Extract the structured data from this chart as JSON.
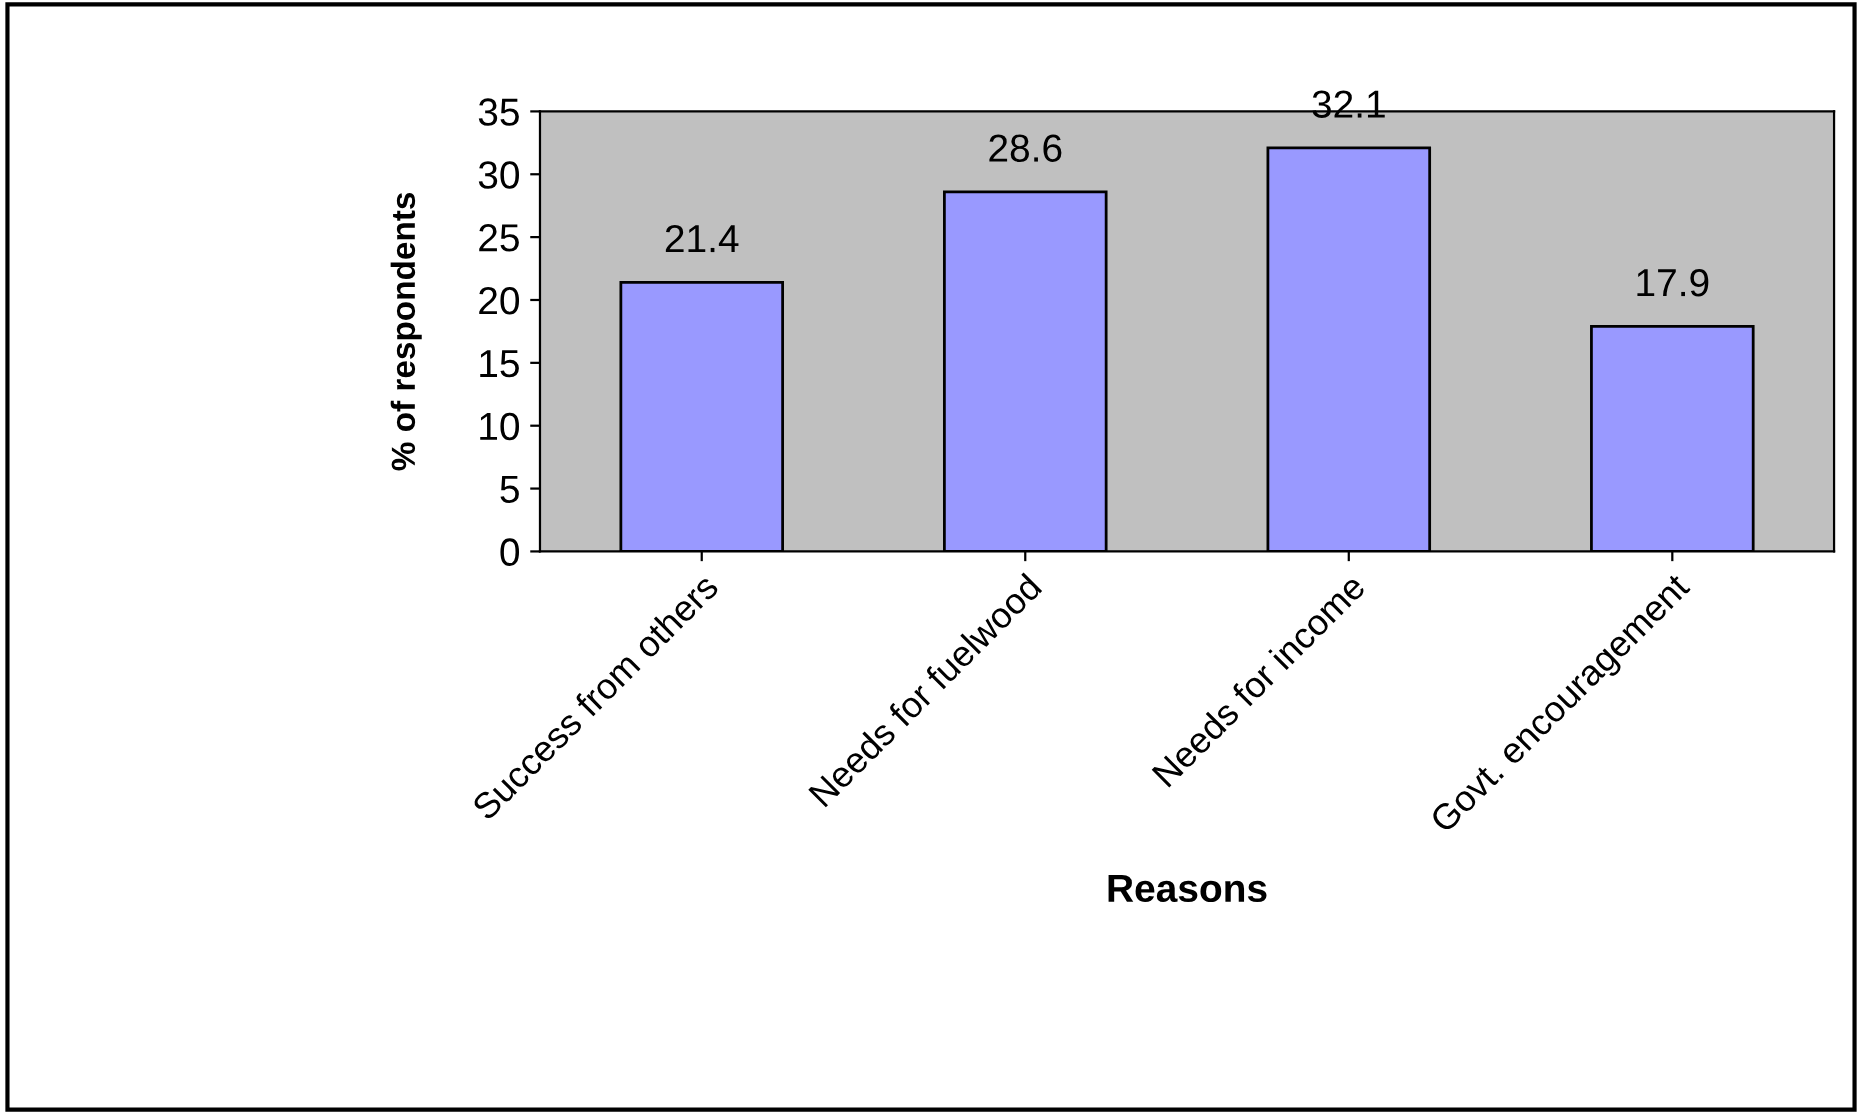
{
  "chart_data": {
    "type": "bar",
    "xlabel": "Reasons",
    "ylabel": "% of respondents",
    "categories": [
      "Success from others",
      "Needs for fuelwood",
      "Needs for income",
      "Govt. encouragement"
    ],
    "values": [
      21.4,
      28.6,
      32.1,
      17.9
    ],
    "color": "#9999ff",
    "ylim": [
      0,
      35
    ],
    "yticks": [
      0,
      5,
      10,
      15,
      20,
      25,
      30,
      35
    ],
    "grid": false,
    "data_labels": true,
    "legend": false
  }
}
